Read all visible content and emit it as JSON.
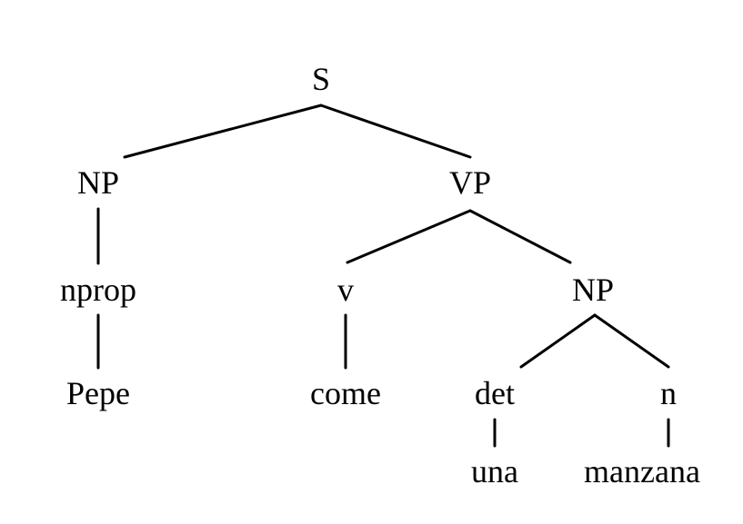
{
  "tree": {
    "nodes": [
      {
        "id": "s",
        "label": "S"
      },
      {
        "id": "np1",
        "label": "NP"
      },
      {
        "id": "vp",
        "label": "VP"
      },
      {
        "id": "nprop",
        "label": "nprop"
      },
      {
        "id": "pepe",
        "label": "Pepe"
      },
      {
        "id": "v",
        "label": "v"
      },
      {
        "id": "come",
        "label": "come"
      },
      {
        "id": "np2",
        "label": "NP"
      },
      {
        "id": "det",
        "label": "det"
      },
      {
        "id": "una",
        "label": "una"
      },
      {
        "id": "n",
        "label": "n"
      },
      {
        "id": "manzana",
        "label": "manzana"
      }
    ],
    "edges": [
      {
        "from": "s",
        "to": "np1"
      },
      {
        "from": "s",
        "to": "vp"
      },
      {
        "from": "np1",
        "to": "nprop"
      },
      {
        "from": "nprop",
        "to": "pepe"
      },
      {
        "from": "vp",
        "to": "v"
      },
      {
        "from": "vp",
        "to": "np2"
      },
      {
        "from": "v",
        "to": "come"
      },
      {
        "from": "np2",
        "to": "det"
      },
      {
        "from": "np2",
        "to": "n"
      },
      {
        "from": "det",
        "to": "una"
      },
      {
        "from": "n",
        "to": "manzana"
      }
    ]
  }
}
